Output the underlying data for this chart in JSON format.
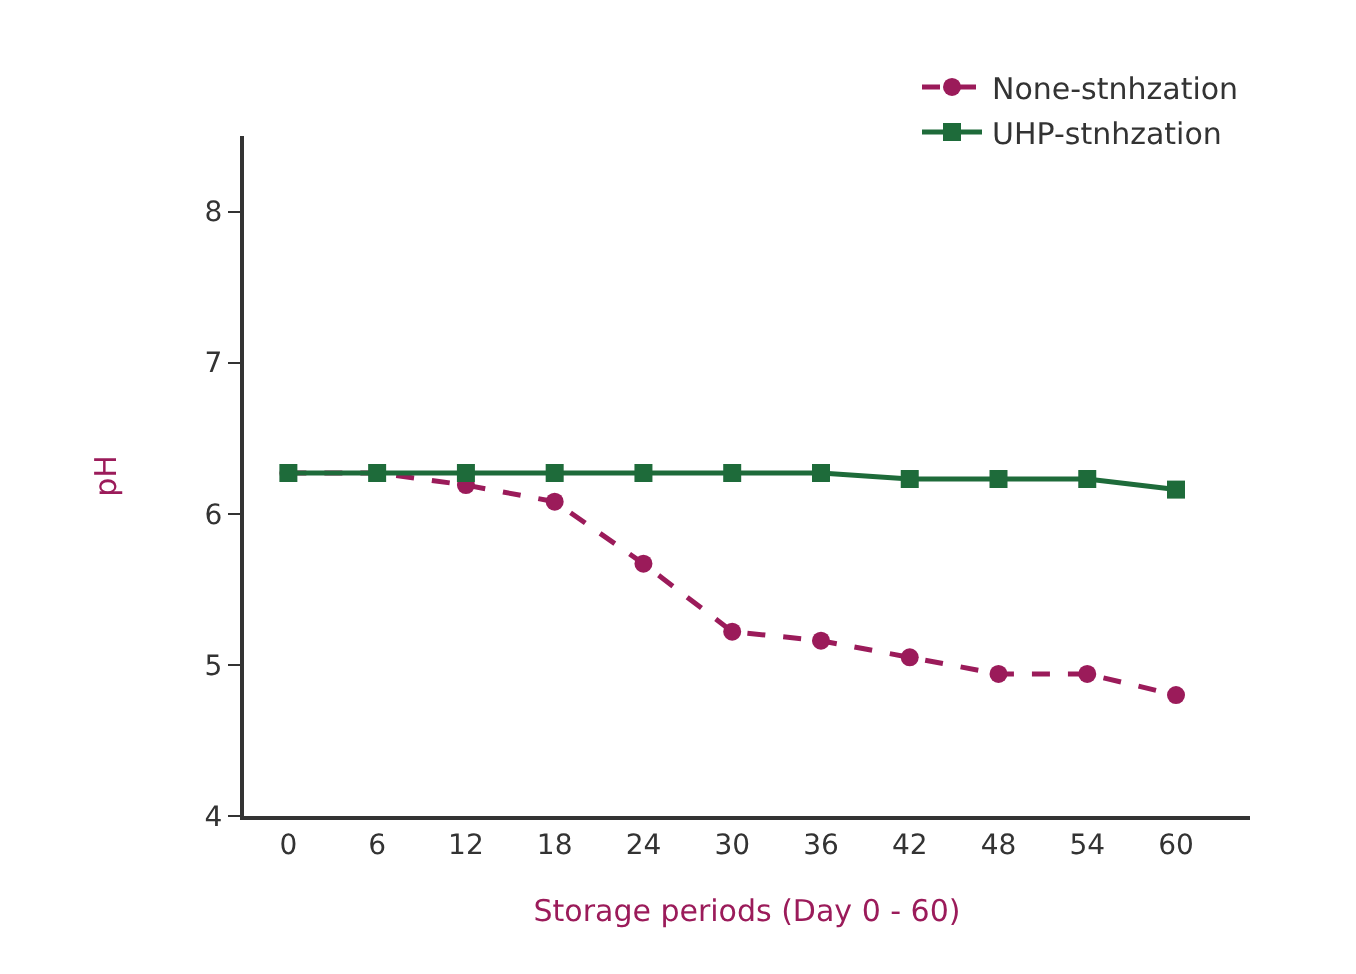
{
  "chart_data": {
    "type": "line",
    "xlabel": "Storage periods (Day 0 - 60)",
    "ylabel": "pH",
    "x": [
      0,
      6,
      12,
      18,
      24,
      30,
      36,
      42,
      48,
      54,
      60
    ],
    "series": [
      {
        "name": "None-stnhzation",
        "color": "#9b1b5a",
        "marker": "circle",
        "line_style": "dashed",
        "values": [
          6.27,
          6.27,
          6.19,
          6.08,
          5.67,
          5.22,
          5.16,
          5.05,
          4.94,
          4.94,
          4.8
        ]
      },
      {
        "name": "UHP-stnhzation",
        "color": "#1e6b3a",
        "marker": "square",
        "line_style": "solid",
        "values": [
          6.27,
          6.27,
          6.27,
          6.27,
          6.27,
          6.27,
          6.27,
          6.23,
          6.23,
          6.23,
          6.16
        ]
      }
    ],
    "xlim": [
      -3,
      65
    ],
    "xticks": [
      0,
      6,
      12,
      18,
      24,
      30,
      36,
      42,
      48,
      54,
      60
    ],
    "ylim": [
      4,
      8.5
    ],
    "yticks": [
      4,
      5,
      6,
      7,
      8
    ],
    "grid": false,
    "legend": "top right"
  }
}
